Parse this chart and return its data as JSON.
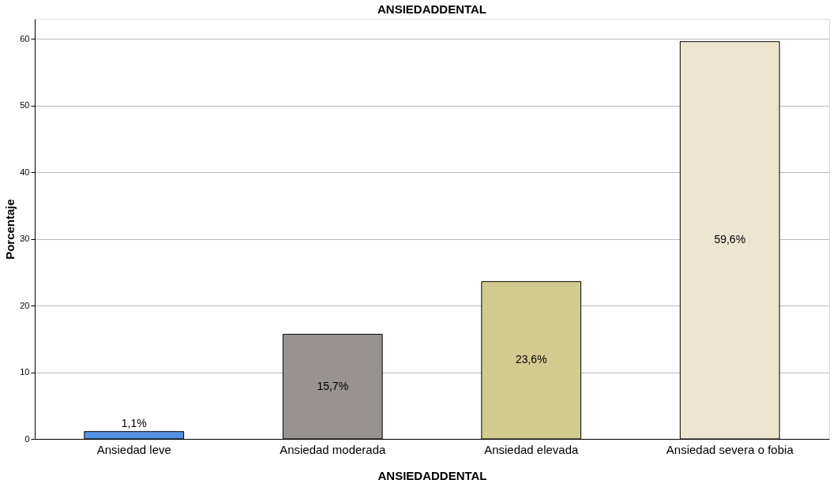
{
  "chart_data": {
    "type": "bar",
    "title": "ANSIEDADDENTAL",
    "xlabel": "ANSIEDADDENTAL",
    "ylabel": "Porcentaje",
    "categories": [
      "Ansiedad leve",
      "Ansiedad moderada",
      "Ansiedad elevada",
      "Ansiedad severa o fobia"
    ],
    "values": [
      1.1,
      15.7,
      23.6,
      59.6
    ],
    "colors": [
      "#5592e0",
      "#989390",
      "#d1cb8f",
      "#ece5d0"
    ],
    "value_labels": [
      "1,1%",
      "15,7%",
      "23,6%",
      "59,6%"
    ],
    "ylim": [
      0,
      63
    ],
    "yticks": [
      0,
      10,
      20,
      30,
      40,
      50,
      60
    ],
    "grid": "y"
  }
}
